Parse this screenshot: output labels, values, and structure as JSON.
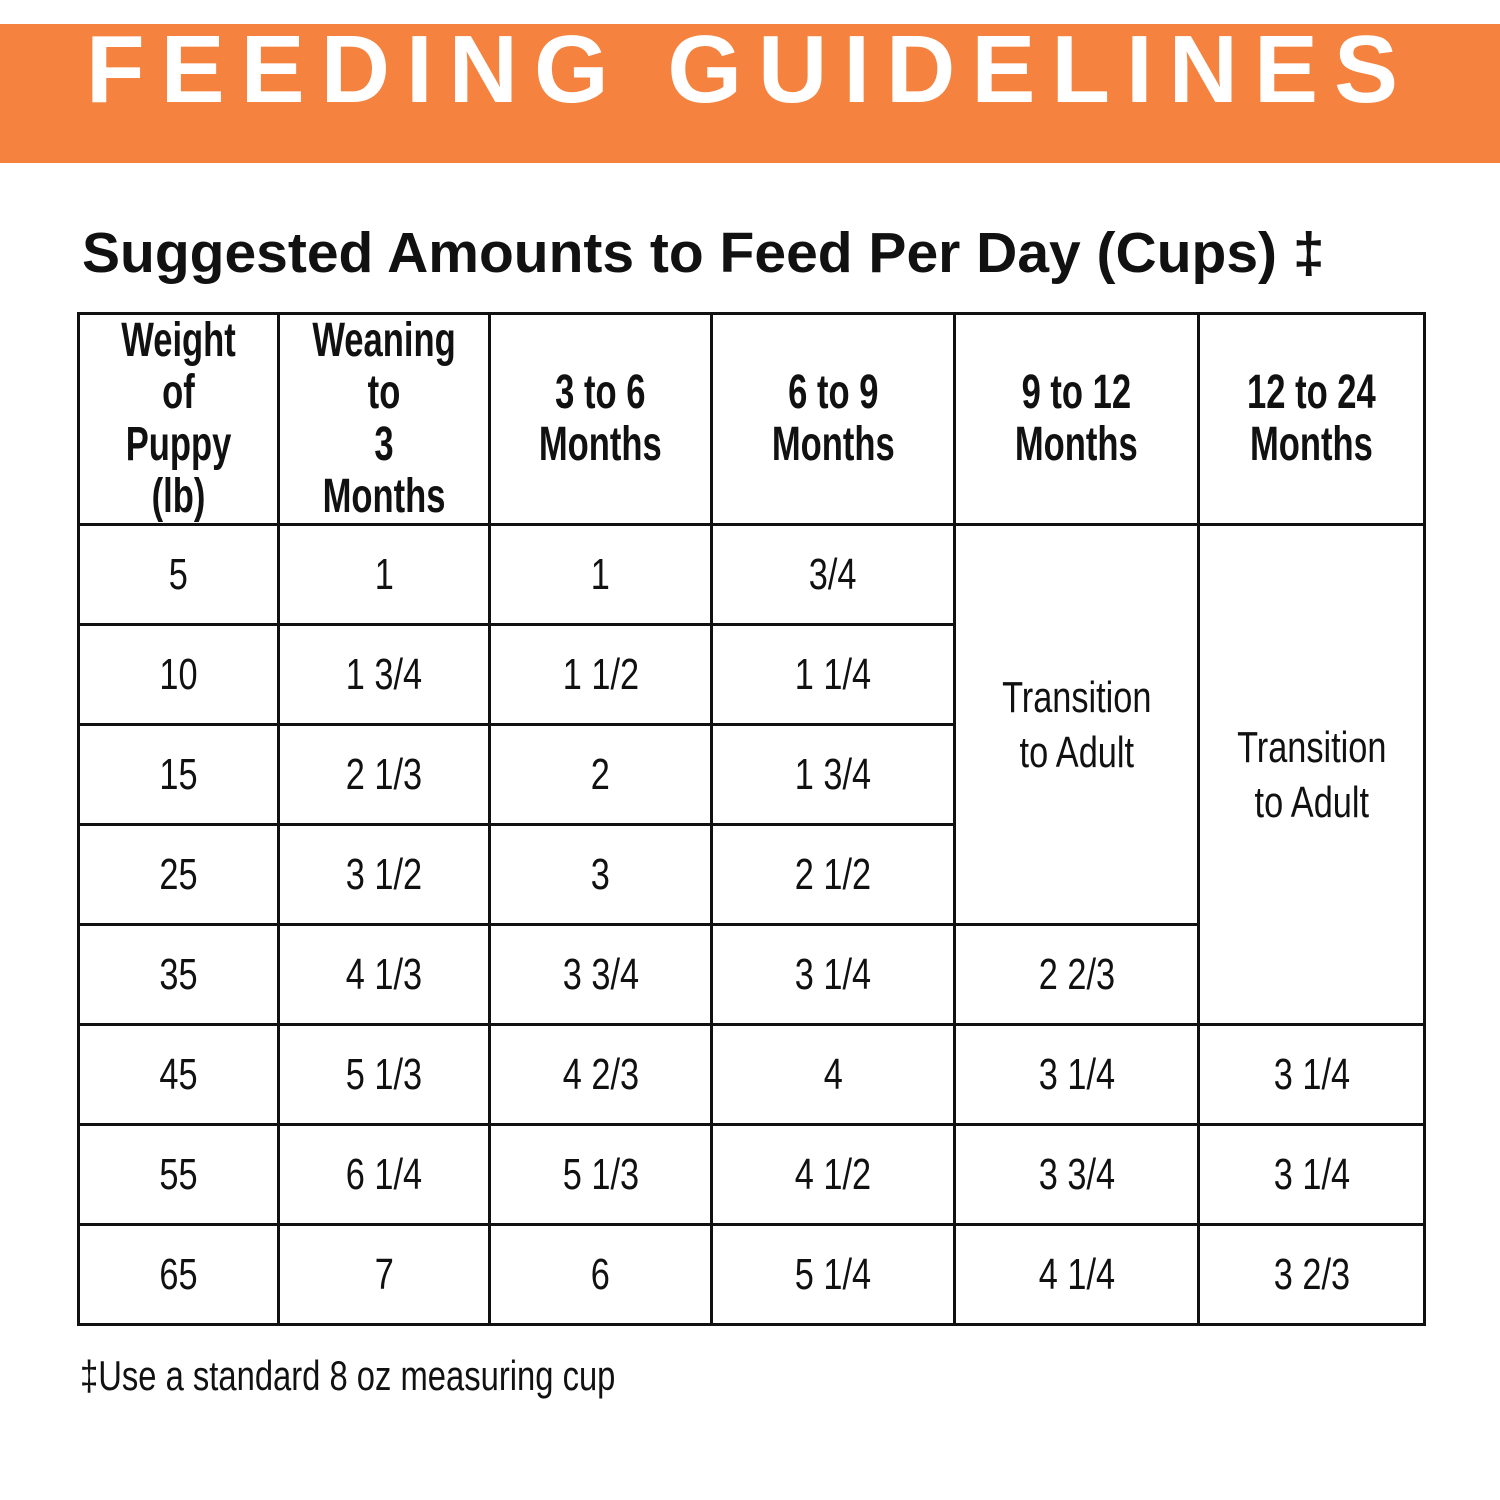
{
  "banner": {
    "title": "FEEDING GUIDELINES",
    "color": "#F5823F"
  },
  "subtitle": "Suggested Amounts to Feed Per Day (Cups) ‡",
  "table": {
    "headers": [
      "Weight of\nPuppy (lb)",
      "Weaning to\n3 Months",
      "3 to 6\nMonths",
      "6 to 9\nMonths",
      "9 to 12\nMonths",
      "12 to 24\nMonths"
    ],
    "transition_9_12": "Transition\nto Adult",
    "transition_12_24": "Transition\nto Adult",
    "rows": [
      [
        "5",
        "1",
        "1",
        "3/4"
      ],
      [
        "10",
        "1 3/4",
        "1 1/2",
        "1 1/4"
      ],
      [
        "15",
        "2 1/3",
        "2",
        "1 3/4"
      ],
      [
        "25",
        "3 1/2",
        "3",
        "2 1/2"
      ],
      [
        "35",
        "4 1/3",
        "3 3/4",
        "3 1/4",
        "2 2/3"
      ],
      [
        "45",
        "5 1/3",
        "4 2/3",
        "4",
        "3 1/4",
        "3 1/4"
      ],
      [
        "55",
        "6 1/4",
        "5 1/3",
        "4 1/2",
        "3 3/4",
        "3 1/4"
      ],
      [
        "65",
        "7",
        "6",
        "5 1/4",
        "4 1/4",
        "3 2/3"
      ]
    ]
  },
  "footnote": "‡Use a standard 8 oz measuring cup"
}
